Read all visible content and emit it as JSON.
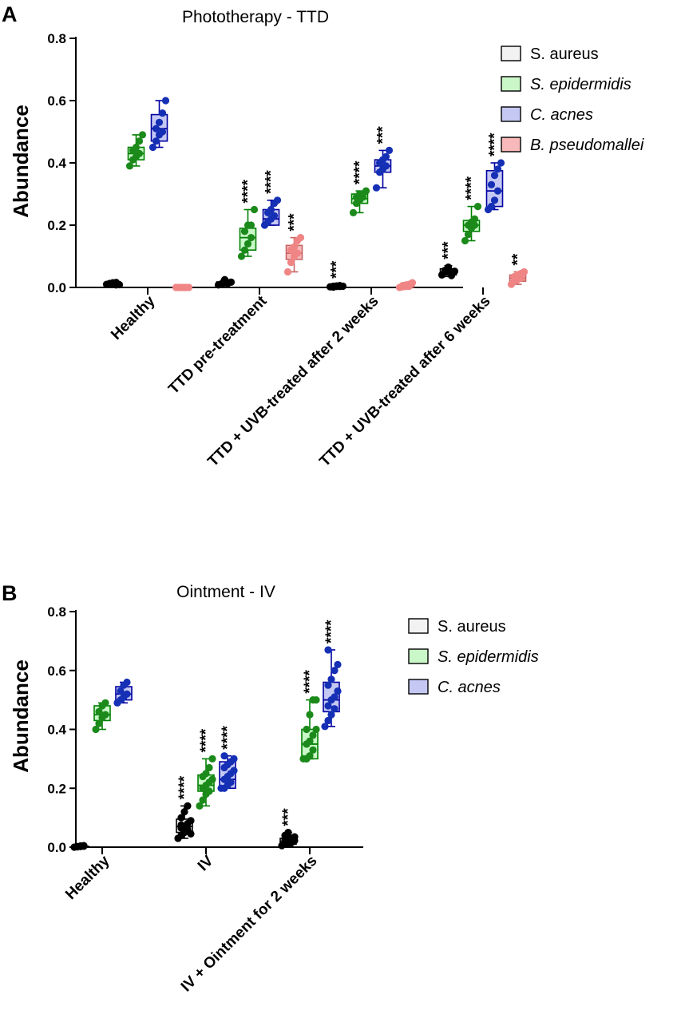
{
  "chart_data": [
    {
      "type": "box",
      "panel": "A",
      "title": "Phototherapy - TTD",
      "ylabel": "Abundance",
      "xlabel": "",
      "ylim": [
        0,
        0.8
      ],
      "yticks": [
        "0.0",
        "0.2",
        "0.4",
        "0.6",
        "0.8"
      ],
      "reference_line": 0,
      "legend_position": "top-right",
      "categories": [
        "Healthy",
        "TTD pre-treatment",
        "TTD + UVB-treated after 2 weeks",
        "TTD + UVB-treated after 6 weeks"
      ],
      "series": [
        {
          "name": "S. aureus",
          "italic": false,
          "fill": "#f2f2f2",
          "edge": "#000000",
          "dot": "#000000",
          "boxes": [
            {
              "min": 0.005,
              "q1": 0.008,
              "median": 0.012,
              "q3": 0.015,
              "max": 0.018
            },
            {
              "min": 0.005,
              "q1": 0.01,
              "median": 0.013,
              "q3": 0.018,
              "max": 0.025
            },
            {
              "min": 0.0,
              "q1": 0.002,
              "median": 0.003,
              "q3": 0.005,
              "max": 0.008
            },
            {
              "min": 0.035,
              "q1": 0.04,
              "median": 0.05,
              "q3": 0.06,
              "max": 0.07
            }
          ],
          "points": [
            [
              0.01,
              0.012,
              0.015,
              0.008,
              0.013,
              0.011,
              0.016,
              0.009
            ],
            [
              0.008,
              0.012,
              0.02,
              0.015,
              0.01,
              0.025,
              0.013,
              0.017
            ],
            [
              0.002,
              0.004,
              0.003,
              0.006,
              0.001,
              0.005,
              0.003,
              0.004
            ],
            [
              0.04,
              0.05,
              0.06,
              0.045,
              0.055,
              0.065,
              0.038,
              0.052
            ]
          ],
          "significance": [
            "",
            "",
            "***",
            "***"
          ]
        },
        {
          "name": "S. epidermidis",
          "italic": true,
          "fill": "#c9f7c7",
          "edge": "#008000",
          "dot": "#1b8a1b",
          "boxes": [
            {
              "min": 0.39,
              "q1": 0.41,
              "median": 0.43,
              "q3": 0.45,
              "max": 0.49
            },
            {
              "min": 0.1,
              "q1": 0.12,
              "median": 0.16,
              "q3": 0.19,
              "max": 0.25
            },
            {
              "min": 0.24,
              "q1": 0.27,
              "median": 0.285,
              "q3": 0.3,
              "max": 0.31
            },
            {
              "min": 0.15,
              "q1": 0.18,
              "median": 0.2,
              "q3": 0.215,
              "max": 0.26
            }
          ],
          "points": [
            [
              0.39,
              0.41,
              0.42,
              0.43,
              0.44,
              0.45,
              0.47,
              0.49
            ],
            [
              0.1,
              0.12,
              0.14,
              0.16,
              0.18,
              0.2,
              0.2,
              0.25
            ],
            [
              0.24,
              0.27,
              0.28,
              0.29,
              0.29,
              0.3,
              0.3,
              0.31
            ],
            [
              0.15,
              0.17,
              0.19,
              0.2,
              0.2,
              0.21,
              0.22,
              0.26
            ]
          ],
          "significance": [
            "",
            "****",
            "****",
            "****"
          ]
        },
        {
          "name": "C. acnes",
          "italic": true,
          "fill": "#c5c8f3",
          "edge": "#0000a0",
          "dot": "#1530b5",
          "boxes": [
            {
              "min": 0.45,
              "q1": 0.47,
              "median": 0.51,
              "q3": 0.555,
              "max": 0.6
            },
            {
              "min": 0.2,
              "q1": 0.2,
              "median": 0.22,
              "q3": 0.25,
              "max": 0.28
            },
            {
              "min": 0.32,
              "q1": 0.37,
              "median": 0.39,
              "q3": 0.41,
              "max": 0.44
            },
            {
              "min": 0.25,
              "q1": 0.26,
              "median": 0.31,
              "q3": 0.375,
              "max": 0.4
            }
          ],
          "points": [
            [
              0.45,
              0.47,
              0.49,
              0.5,
              0.51,
              0.53,
              0.56,
              0.6
            ],
            [
              0.2,
              0.21,
              0.22,
              0.23,
              0.24,
              0.25,
              0.27,
              0.28
            ],
            [
              0.32,
              0.37,
              0.38,
              0.39,
              0.4,
              0.41,
              0.42,
              0.44
            ],
            [
              0.25,
              0.26,
              0.28,
              0.31,
              0.33,
              0.36,
              0.38,
              0.4
            ]
          ],
          "significance": [
            "",
            "****",
            "***",
            "****"
          ]
        },
        {
          "name": "B. pseudomallei",
          "italic": true,
          "fill": "#f7b9b9",
          "edge": "#c86464",
          "dot": "#f08585",
          "boxes": [
            {
              "min": 0.0,
              "q1": 0.0,
              "median": 0.0,
              "q3": 0.0,
              "max": 0.0
            },
            {
              "min": 0.05,
              "q1": 0.09,
              "median": 0.11,
              "q3": 0.135,
              "max": 0.16
            },
            {
              "min": 0.0,
              "q1": 0.001,
              "median": 0.003,
              "q3": 0.006,
              "max": 0.015
            },
            {
              "min": 0.01,
              "q1": 0.02,
              "median": 0.03,
              "q3": 0.04,
              "max": 0.05
            }
          ],
          "points": [
            [
              0.0,
              0.0,
              0.0,
              0.0,
              0.0,
              0.0,
              0.0,
              0.0
            ],
            [
              0.05,
              0.08,
              0.1,
              0.11,
              0.12,
              0.13,
              0.15,
              0.16
            ],
            [
              0.0,
              0.002,
              0.003,
              0.004,
              0.006,
              0.008,
              0.01,
              0.015
            ],
            [
              0.01,
              0.02,
              0.025,
              0.03,
              0.035,
              0.04,
              0.045,
              0.05
            ]
          ],
          "significance": [
            "",
            "***",
            "",
            "**"
          ]
        }
      ]
    },
    {
      "type": "box",
      "panel": "B",
      "title": "Ointment - IV",
      "ylabel": "Abundance",
      "xlabel": "",
      "ylim": [
        0,
        0.8
      ],
      "yticks": [
        "0.0",
        "0.2",
        "0.4",
        "0.6",
        "0.8"
      ],
      "reference_line": 0,
      "legend_position": "top-right",
      "categories": [
        "Healthy",
        "IV",
        "IV + Ointment for 2 weeks"
      ],
      "series": [
        {
          "name": "S. aureus",
          "italic": false,
          "fill": "#f2f2f2",
          "edge": "#000000",
          "dot": "#000000",
          "boxes": [
            {
              "min": 0.0,
              "q1": 0.001,
              "median": 0.002,
              "q3": 0.003,
              "max": 0.005
            },
            {
              "min": 0.03,
              "q1": 0.05,
              "median": 0.07,
              "q3": 0.095,
              "max": 0.14
            },
            {
              "min": 0.005,
              "q1": 0.01,
              "median": 0.02,
              "q3": 0.03,
              "max": 0.05
            }
          ],
          "points": [
            [
              0.0,
              0.001,
              0.002,
              0.003,
              0.002,
              0.004,
              0.005
            ],
            [
              0.03,
              0.04,
              0.05,
              0.06,
              0.065,
              0.07,
              0.08,
              0.09,
              0.1,
              0.12,
              0.14,
              0.045,
              0.075
            ],
            [
              0.005,
              0.01,
              0.012,
              0.015,
              0.02,
              0.025,
              0.03,
              0.035,
              0.04,
              0.05,
              0.018,
              0.022,
              0.028
            ]
          ],
          "significance": [
            "",
            "****",
            "***"
          ]
        },
        {
          "name": "S. epidermidis",
          "italic": true,
          "fill": "#c9f7c7",
          "edge": "#008000",
          "dot": "#1b8a1b",
          "boxes": [
            {
              "min": 0.4,
              "q1": 0.43,
              "median": 0.45,
              "q3": 0.48,
              "max": 0.49
            },
            {
              "min": 0.14,
              "q1": 0.19,
              "median": 0.21,
              "q3": 0.245,
              "max": 0.3
            },
            {
              "min": 0.3,
              "q1": 0.3,
              "median": 0.35,
              "q3": 0.4,
              "max": 0.5
            }
          ],
          "points": [
            [
              0.4,
              0.42,
              0.44,
              0.45,
              0.46,
              0.48,
              0.49
            ],
            [
              0.14,
              0.16,
              0.18,
              0.19,
              0.2,
              0.21,
              0.22,
              0.23,
              0.24,
              0.25,
              0.27,
              0.3,
              0.2
            ],
            [
              0.3,
              0.3,
              0.31,
              0.33,
              0.35,
              0.36,
              0.38,
              0.4,
              0.4,
              0.45,
              0.5,
              0.5,
              0.3
            ]
          ],
          "significance": [
            "",
            "****",
            "****"
          ]
        },
        {
          "name": "C. acnes",
          "italic": true,
          "fill": "#c5c8f3",
          "edge": "#0000a0",
          "dot": "#1530b5",
          "boxes": [
            {
              "min": 0.49,
              "q1": 0.5,
              "median": 0.52,
              "q3": 0.545,
              "max": 0.56
            },
            {
              "min": 0.2,
              "q1": 0.2,
              "median": 0.23,
              "q3": 0.29,
              "max": 0.31
            },
            {
              "min": 0.41,
              "q1": 0.46,
              "median": 0.5,
              "q3": 0.56,
              "max": 0.67
            }
          ],
          "points": [
            [
              0.49,
              0.5,
              0.51,
              0.52,
              0.53,
              0.55,
              0.56
            ],
            [
              0.2,
              0.2,
              0.21,
              0.22,
              0.23,
              0.24,
              0.25,
              0.26,
              0.27,
              0.28,
              0.29,
              0.3,
              0.31
            ],
            [
              0.41,
              0.43,
              0.45,
              0.47,
              0.48,
              0.5,
              0.51,
              0.53,
              0.55,
              0.57,
              0.6,
              0.62,
              0.67
            ]
          ],
          "significance": [
            "",
            "****",
            "****"
          ]
        }
      ]
    }
  ]
}
